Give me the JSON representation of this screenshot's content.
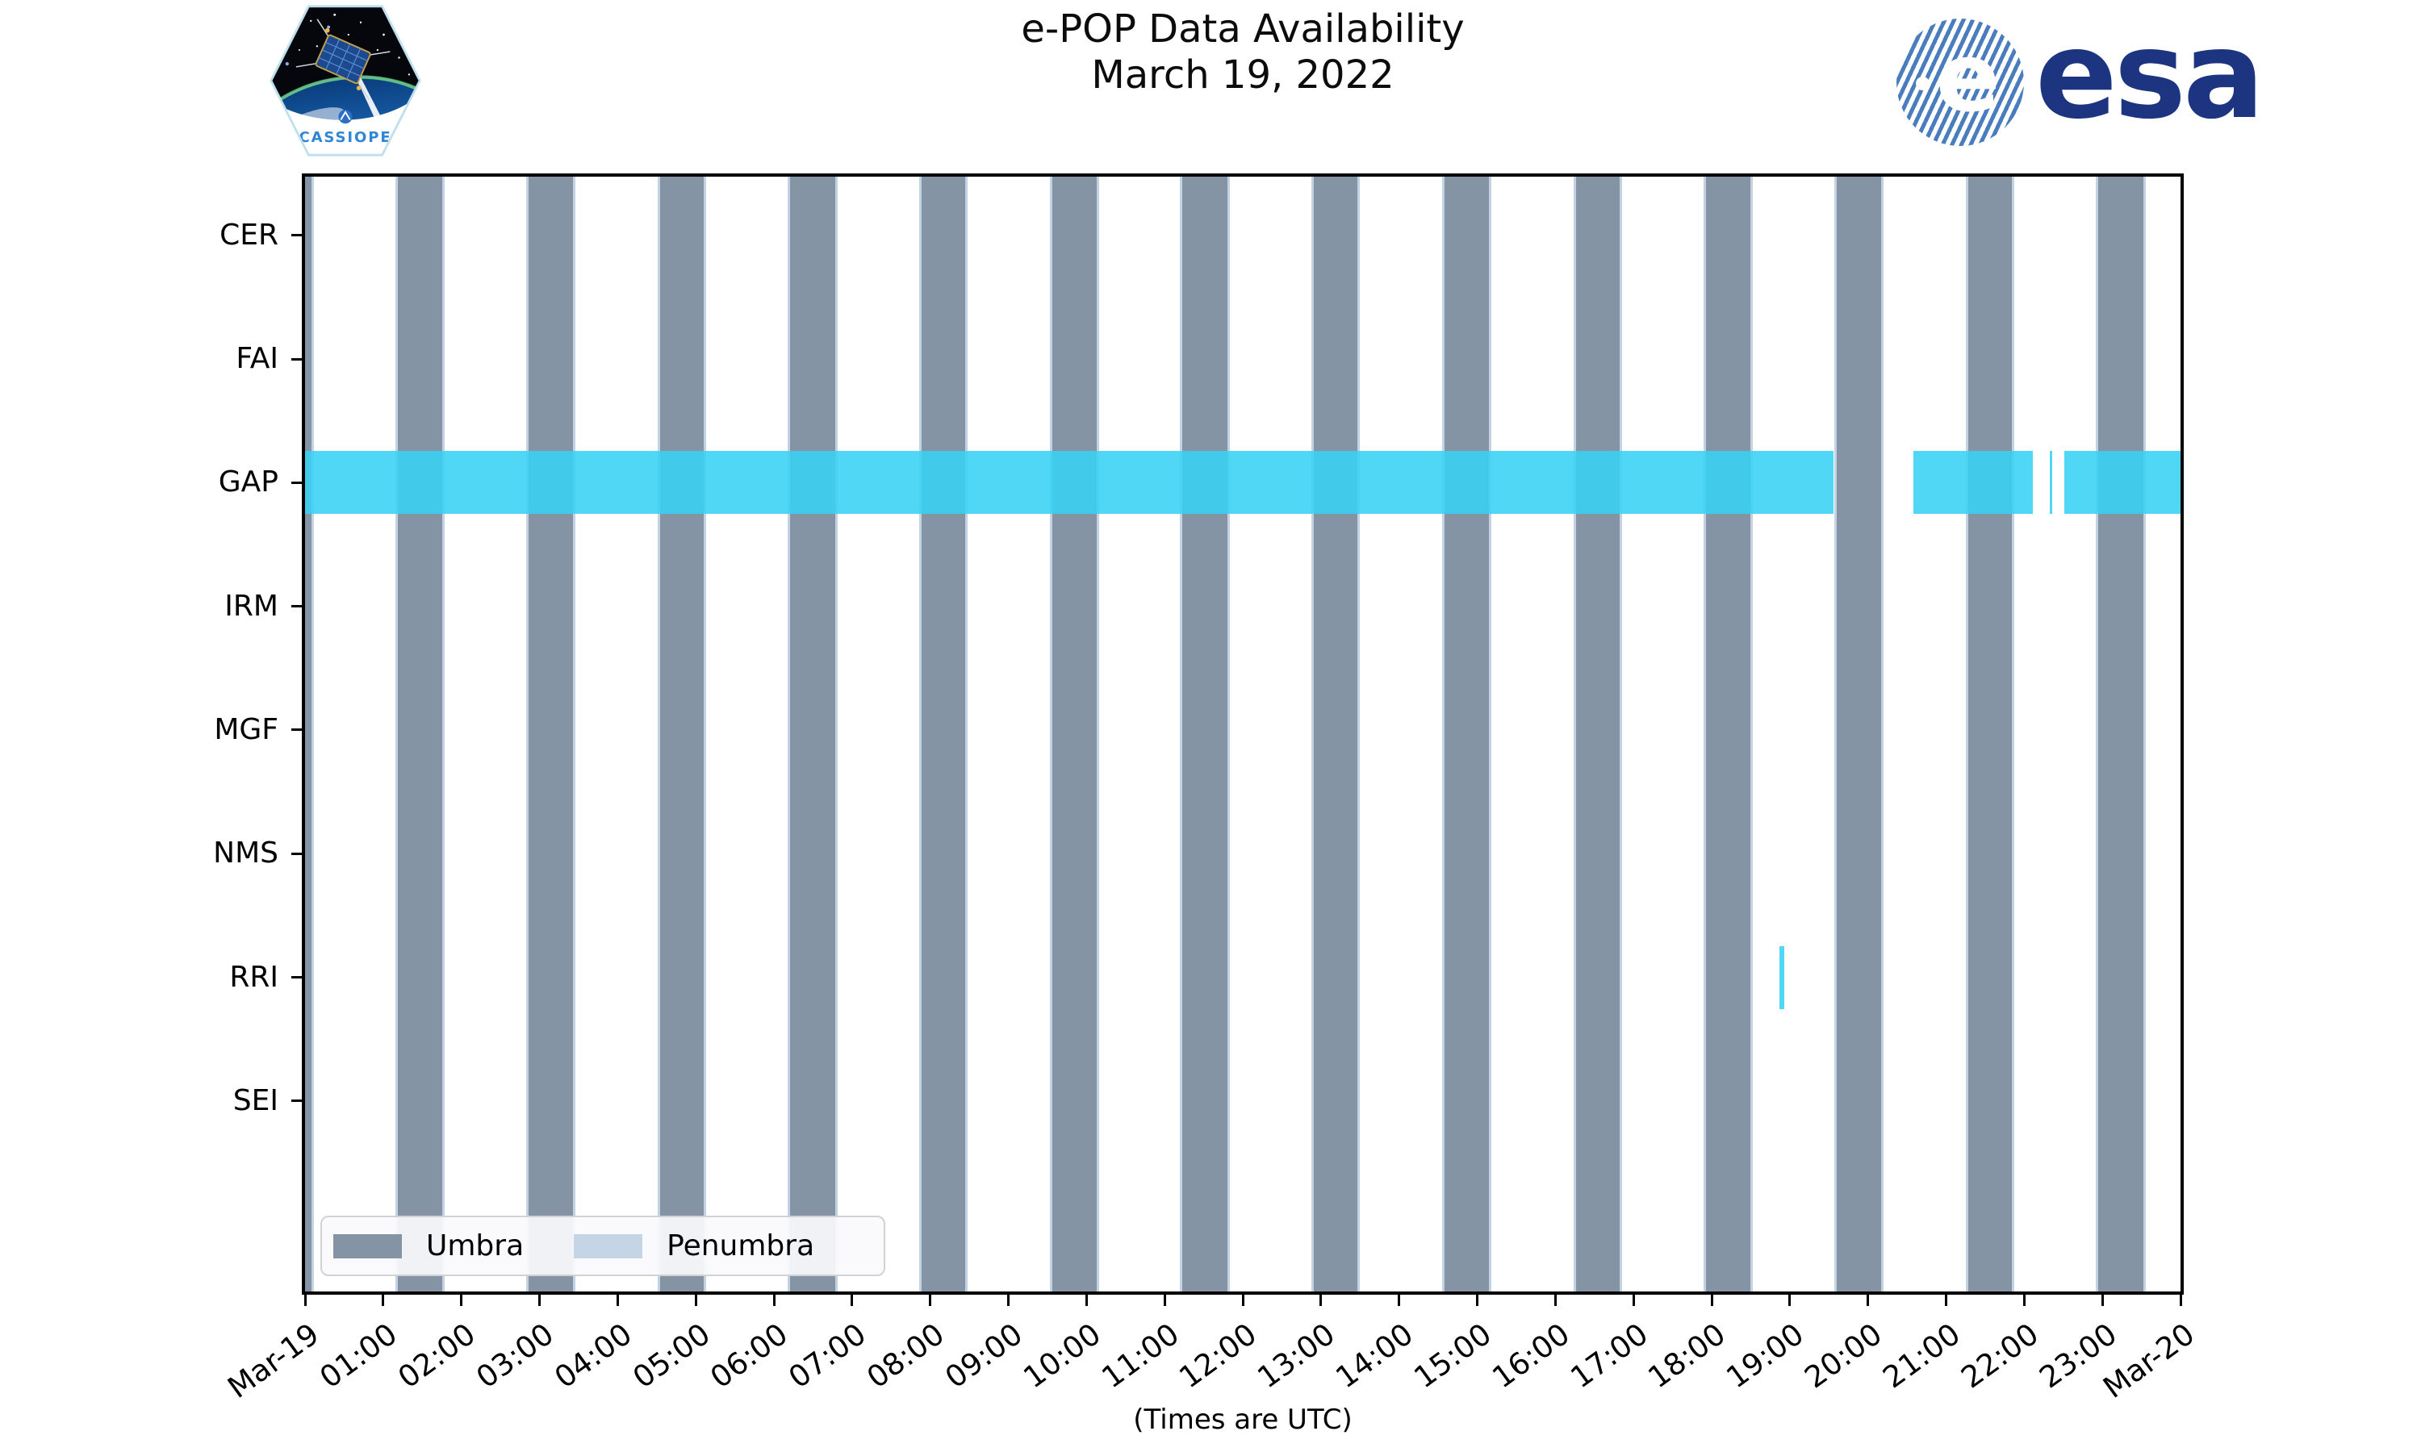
{
  "title": {
    "line1": "e-POP Data Availability",
    "line2": "March 19, 2022"
  },
  "footer": {
    "caption": "(Times are UTC)"
  },
  "logos": {
    "cassiope_label": "CASSIOPE",
    "esa_wordmark": "esa"
  },
  "colors": {
    "umbra": "#8594a4",
    "penumbra": "#c2d2e3",
    "availability": "rgba(56,210,244,0.88)",
    "legend_umbra": "#8594a4",
    "legend_penumbra": "#c6d5e6",
    "axis": "#000000"
  },
  "legend": [
    {
      "label": "Umbra"
    },
    {
      "label": "Penumbra"
    }
  ],
  "chart_data": {
    "type": "timeline",
    "title": "e-POP Data Availability",
    "subtitle": "March 19, 2022",
    "xlabel": "(Times are UTC)",
    "rows": [
      "CER",
      "FAI",
      "GAP",
      "IRM",
      "MGF",
      "NMS",
      "RRI",
      "SEI"
    ],
    "x_axis": {
      "range_hours": [
        0,
        24
      ],
      "tick_labels": [
        "Mar-19",
        "01:00",
        "02:00",
        "03:00",
        "04:00",
        "05:00",
        "06:00",
        "07:00",
        "08:00",
        "09:00",
        "10:00",
        "11:00",
        "12:00",
        "13:00",
        "14:00",
        "15:00",
        "16:00",
        "17:00",
        "18:00",
        "19:00",
        "20:00",
        "21:00",
        "22:00",
        "23:00",
        "Mar-20"
      ]
    },
    "availability_hours": {
      "GAP": [
        [
          0,
          19.56
        ],
        [
          20.58,
          22.11
        ],
        [
          22.33,
          22.36
        ],
        [
          22.51,
          24.0
        ]
      ],
      "RRI": [
        [
          18.87,
          18.93
        ]
      ]
    },
    "umbra_intervals_hours": [
      [
        0,
        0.08
      ],
      [
        1.19,
        1.76
      ],
      [
        2.86,
        3.43
      ],
      [
        4.54,
        5.1
      ],
      [
        6.21,
        6.78
      ],
      [
        7.89,
        8.45
      ],
      [
        9.56,
        10.13
      ],
      [
        11.23,
        11.8
      ],
      [
        12.91,
        13.47
      ],
      [
        14.58,
        15.15
      ],
      [
        16.26,
        16.82
      ],
      [
        17.93,
        18.5
      ],
      [
        19.6,
        20.17
      ],
      [
        21.28,
        21.84
      ],
      [
        22.95,
        23.52
      ]
    ],
    "legend_entries": [
      "Umbra",
      "Penumbra"
    ]
  }
}
